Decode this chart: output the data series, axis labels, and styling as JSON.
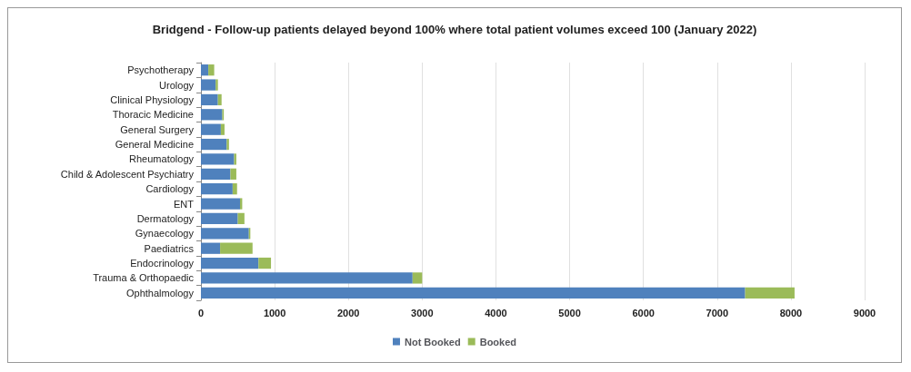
{
  "chart_data": {
    "type": "bar",
    "orientation": "horizontal",
    "stacked": true,
    "title": "Bridgend - Follow-up patients delayed beyond 100% where total patient volumes exceed 100 (January 2022)",
    "categories": [
      "Psychotherapy",
      "Urology",
      "Clinical Physiology",
      "Thoracic Medicine",
      "General Surgery",
      "General Medicine",
      "Rheumatology",
      "Child & Adolescent Psychiatry",
      "Cardiology",
      "ENT",
      "Dermatology",
      "Gynaecology",
      "Paediatrics",
      "Endocrinology",
      "Trauma & Orthopaedic",
      "Ophthalmology"
    ],
    "series": [
      {
        "name": "Not Booked",
        "color": "#4f81bd",
        "values": [
          100,
          200,
          230,
          290,
          270,
          350,
          450,
          400,
          430,
          530,
          500,
          650,
          260,
          780,
          2870,
          7380
        ]
      },
      {
        "name": "Booked",
        "color": "#9bbb59",
        "values": [
          80,
          30,
          50,
          20,
          50,
          30,
          30,
          80,
          60,
          30,
          90,
          20,
          440,
          170,
          130,
          670
        ]
      }
    ],
    "xlim": [
      0,
      9000
    ],
    "xticks": [
      0,
      1000,
      2000,
      3000,
      4000,
      5000,
      6000,
      7000,
      8000,
      9000
    ],
    "grid": "x",
    "legend": "bottom"
  }
}
